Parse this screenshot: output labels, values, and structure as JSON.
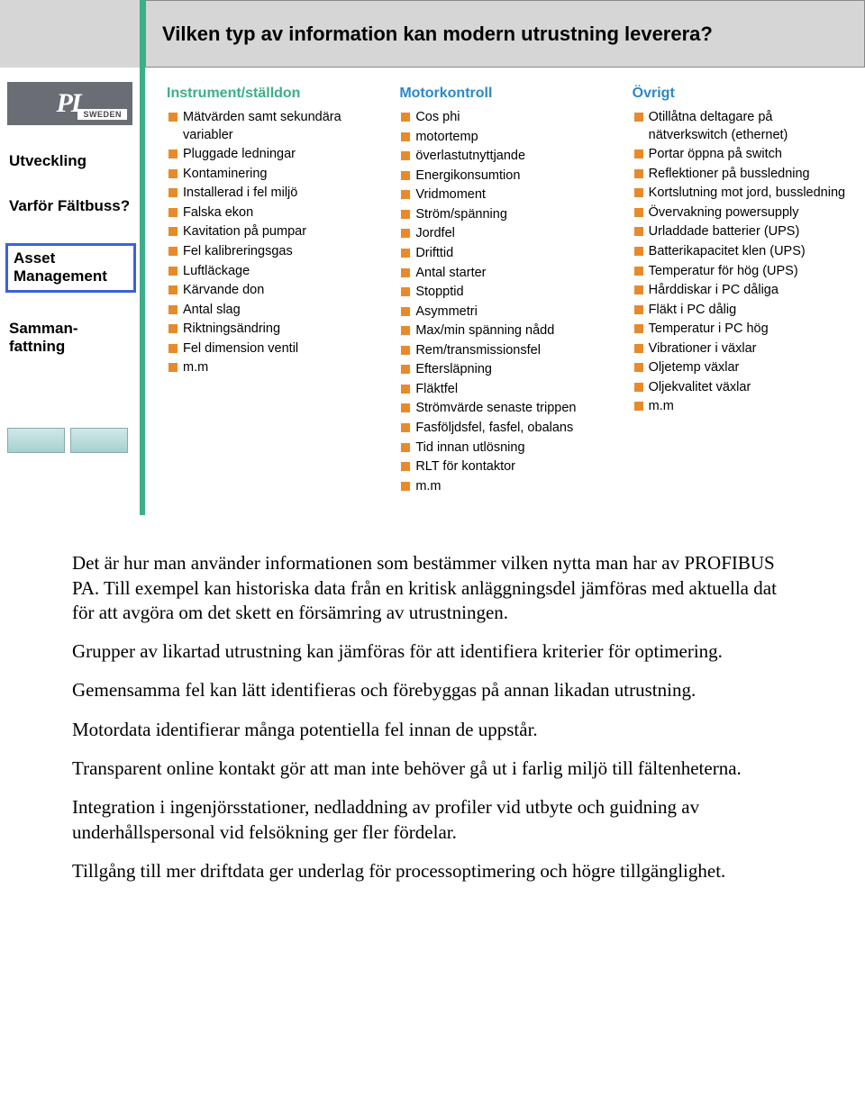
{
  "slide": {
    "title": "Vilken typ av information kan modern utrustning leverera?",
    "title_fontsize": 22,
    "header_bg": "#d6d6d6",
    "divider_color": "#3cae8a",
    "bullet_color": "#e88a2a",
    "logo": {
      "pi": "PI",
      "sweden": "SWEDEN"
    },
    "nav": [
      {
        "label": "Utveckling",
        "active": false
      },
      {
        "label": "Varför Fältbuss?",
        "active": false
      },
      {
        "label": "Asset Management",
        "active": true
      },
      {
        "label": "Samman-\nfattning",
        "active": false
      }
    ],
    "columns": [
      {
        "heading": "Instrument/ställdon",
        "heading_color": "#3cae8a",
        "items": [
          "Mätvärden samt sekundära variabler",
          "Pluggade ledningar",
          "Kontaminering",
          "Installerad i fel miljö",
          "Falska ekon",
          "Kavitation på pumpar",
          "Fel kalibreringsgas",
          "Luftläckage",
          "Kärvande don",
          "Antal slag",
          "Riktningsändring",
          "Fel dimension ventil",
          "m.m"
        ]
      },
      {
        "heading": "Motorkontroll",
        "heading_color": "#2b88c9",
        "items": [
          "Cos phi",
          "motortemp",
          "överlastutnyttjande",
          "Energikonsumtion",
          "Vridmoment",
          "Ström/spänning",
          "Jordfel",
          "Drifttid",
          "Antal starter",
          "Stopptid",
          "Asymmetri",
          "Max/min spänning nådd",
          "Rem/transmissionsfel",
          "Eftersläpning",
          "Fläktfel",
          "Strömvärde senaste trippen",
          "Fasföljdsfel, fasfel, obalans",
          "Tid innan utlösning",
          "RLT för kontaktor",
          "m.m"
        ]
      },
      {
        "heading": "Övrigt",
        "heading_color": "#2b88c9",
        "items": [
          "Otillåtna deltagare på nätverkswitch (ethernet)",
          "Portar öppna på switch",
          "Reflektioner på bussledning",
          "Kortslutning mot jord, bussledning",
          "Övervakning powersupply",
          "Urladdade batterier (UPS)",
          "Batterikapacitet klen (UPS)",
          "Temperatur för hög (UPS)",
          "Hårddiskar i PC dåliga",
          "Fläkt i PC dålig",
          "Temperatur i PC hög",
          "Vibrationer i växlar",
          "Oljetemp växlar",
          "Oljekvalitet växlar",
          "m.m"
        ]
      }
    ]
  },
  "paragraphs": [
    "Det är hur man använder informationen som bestämmer vilken nytta man har av PROFIBUS PA. Till exempel kan historiska data från en kritisk anläggningsdel jämföras med aktuella dat för att avgöra om det skett en försämring av utrustningen.",
    "Grupper av likartad utrustning kan jämföras för att identifiera kriterier för optimering.",
    "Gemensamma fel kan lätt identifieras och förebyggas på annan likadan utrustning.",
    "Motordata identifierar många potentiella fel innan de uppstår.",
    "Transparent online kontakt gör att man inte behöver gå ut i farlig miljö till fältenheterna.",
    "Integration i ingenjörsstationer, nedladdning av profiler vid utbyte och guidning av underhållspersonal vid felsökning ger fler fördelar.",
    "Tillgång till mer driftdata ger underlag för processoptimering och högre tillgänglighet."
  ]
}
